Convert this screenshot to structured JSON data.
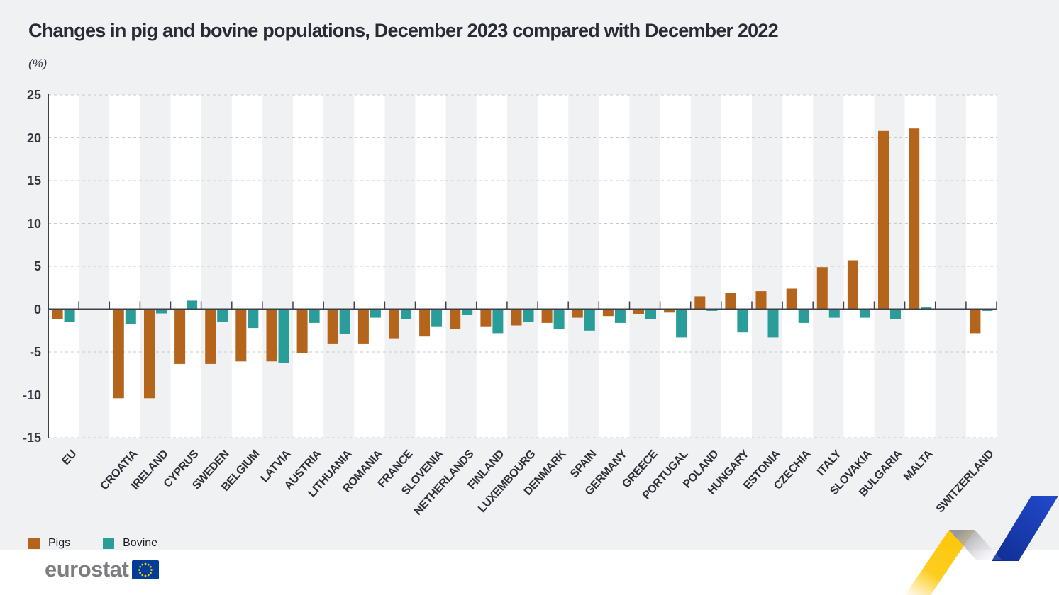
{
  "title": "Changes in pig and bovine populations, December 2023 compared with December 2022",
  "subtitle": "(%)",
  "legend": {
    "pigs": "Pigs",
    "bovine": "Bovine"
  },
  "logo": {
    "text": "eurostat"
  },
  "colors": {
    "pigs": "#b5641c",
    "bovine": "#2a9c9a",
    "axis": "#3f3f48",
    "grid": "#c9c9cc",
    "stripe": "#ffffff",
    "page_bg": "#f0f1f3",
    "footer_bg": "#ffffff",
    "title_text": "#282a35",
    "label_text": "#2e3038",
    "logo_gray": "#7d7d81",
    "flag_blue": "#003d99",
    "star_yellow": "#ffcc00",
    "ribbon_yellow": "#fdc708",
    "ribbon_blue": "#2148c8",
    "ribbon_blue_dark": "#102f96",
    "ribbon_gray": "#97989e"
  },
  "chart_data": {
    "type": "bar",
    "title": "Changes in pig and bovine populations, December 2023 compared with December 2022",
    "ylabel": "(%)",
    "xlabel": "",
    "ylim": [
      -15,
      25
    ],
    "yticks": [
      25,
      20,
      15,
      10,
      5,
      0,
      -5,
      -10,
      -15
    ],
    "grid": "horizontal dashed",
    "legend_position": "bottom-left",
    "note": "empty category strings are spacer gaps after EU and before SWITZERLAND",
    "categories": [
      "EU",
      "",
      "CROATIA",
      "IRELAND",
      "CYPRUS",
      "SWEDEN",
      "BELGIUM",
      "LATVIA",
      "AUSTRIA",
      "LITHUANIA",
      "ROMANIA",
      "FRANCE",
      "SLOVENIA",
      "NETHERLANDS",
      "FINLAND",
      "LUXEMBOURG",
      "DENMARK",
      "SPAIN",
      "GERMANY",
      "GREECE",
      "PORTUGAL",
      "POLAND",
      "HUNGARY",
      "ESTONIA",
      "CZECHIA",
      "ITALY",
      "SLOVAKIA",
      "BULGARIA",
      "MALTA",
      "",
      "SWITZERLAND"
    ],
    "series": [
      {
        "name": "Pigs",
        "color_key": "pigs",
        "values": [
          -1.2,
          null,
          -10.4,
          -10.4,
          -6.4,
          -6.4,
          -6.1,
          -6.1,
          -5.1,
          -4.0,
          -4.0,
          -3.4,
          -3.2,
          -2.3,
          -2.0,
          -1.9,
          -1.6,
          -1.0,
          -0.8,
          -0.6,
          -0.4,
          1.5,
          1.9,
          2.1,
          2.4,
          4.9,
          5.7,
          20.8,
          21.1,
          null,
          -2.8
        ]
      },
      {
        "name": "Bovine",
        "color_key": "bovine",
        "values": [
          -1.5,
          null,
          -1.7,
          -0.5,
          1.0,
          -1.5,
          -2.2,
          -6.3,
          -1.6,
          -2.9,
          -1.0,
          -1.2,
          -2.0,
          -0.7,
          -2.8,
          -1.5,
          -2.3,
          -2.5,
          -1.6,
          -1.2,
          -3.3,
          -0.2,
          -2.7,
          -3.3,
          -1.6,
          -1.0,
          -1.0,
          -1.2,
          0.2,
          null,
          -0.2
        ]
      }
    ]
  }
}
